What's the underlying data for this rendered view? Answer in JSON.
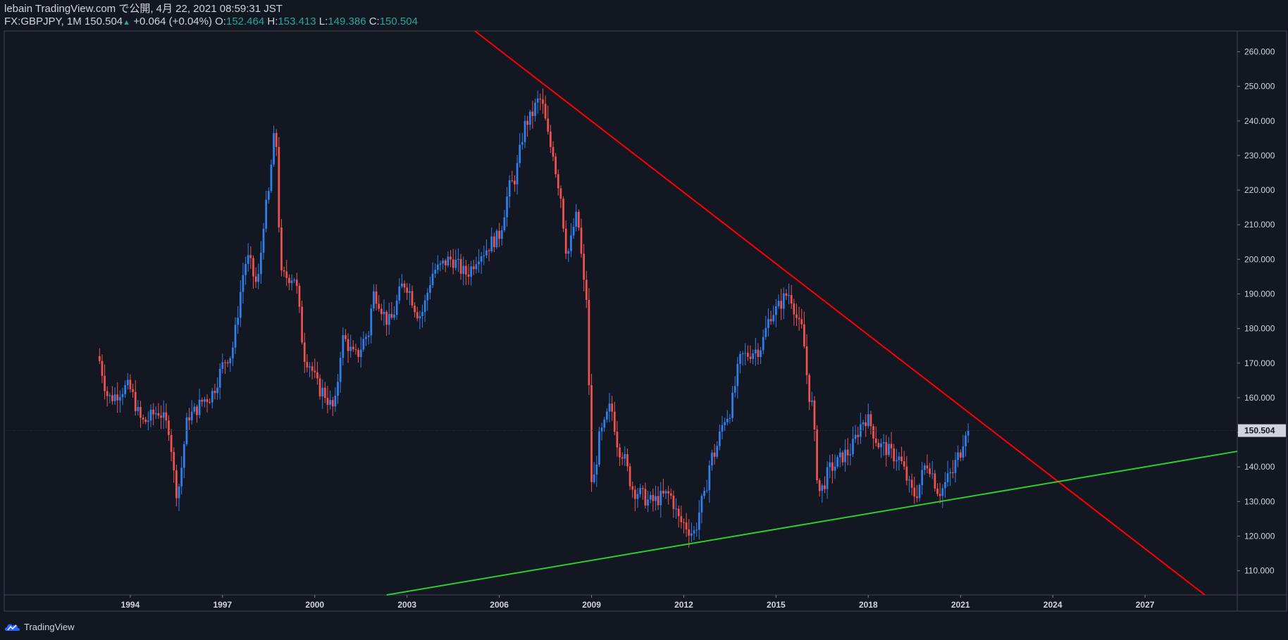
{
  "header": {
    "published": "lebain TradingView.com で公開, 4月 22, 2021 08:59:31 JST",
    "symbol": "FX:GBPJPY, 1M 150.504",
    "change_icon": "triangle-up-icon",
    "change": "+0.064 (+0.04%)",
    "o_label": "O:",
    "o_value": "152.464",
    "h_label": "H:",
    "h_value": "153.413",
    "l_label": "L:",
    "l_value": "149.386",
    "c_label": "C:",
    "c_value": "150.504"
  },
  "footer": {
    "logo_icon": "tradingview-cloud-icon",
    "logo_text": "TradingView"
  },
  "colors": {
    "background": "#131722",
    "up_candle": "#2f80ed",
    "down_candle": "#ef5350",
    "resistance_line": "#ff0000",
    "support_line": "#2ecc2e",
    "axis_text": "#d1d4dc",
    "ohlc_value": "#26a69a"
  },
  "chart_data": {
    "type": "candlestick",
    "symbol": "FX:GBPJPY",
    "interval": "1M",
    "last_price_label": "150.504",
    "x_ticks": [
      "1994",
      "1997",
      "2000",
      "2003",
      "2006",
      "2009",
      "2012",
      "2015",
      "2018",
      "2021",
      "2024",
      "2027"
    ],
    "y_ticks": [
      "110.000",
      "120.000",
      "130.000",
      "140.000",
      "150.000",
      "160.000",
      "170.000",
      "180.000",
      "190.000",
      "200.000",
      "210.000",
      "220.000",
      "230.000",
      "240.000",
      "250.000",
      "260.000"
    ],
    "ylim": [
      103,
      266
    ],
    "xlim": [
      1989.9,
      2030.0
    ],
    "anchors": [
      {
        "t": 1993.0,
        "p": 172
      },
      {
        "t": 1993.4,
        "p": 160
      },
      {
        "t": 1994.0,
        "p": 163
      },
      {
        "t": 1994.5,
        "p": 153
      },
      {
        "t": 1995.0,
        "p": 156
      },
      {
        "t": 1995.3,
        "p": 152
      },
      {
        "t": 1995.6,
        "p": 133
      },
      {
        "t": 1996.0,
        "p": 155
      },
      {
        "t": 1996.6,
        "p": 160
      },
      {
        "t": 1997.3,
        "p": 172
      },
      {
        "t": 1997.9,
        "p": 200
      },
      {
        "t": 1998.2,
        "p": 193
      },
      {
        "t": 1998.5,
        "p": 215
      },
      {
        "t": 1998.8,
        "p": 236
      },
      {
        "t": 1999.0,
        "p": 195
      },
      {
        "t": 1999.4,
        "p": 195
      },
      {
        "t": 1999.8,
        "p": 171
      },
      {
        "t": 2000.3,
        "p": 162
      },
      {
        "t": 2000.7,
        "p": 157
      },
      {
        "t": 2001.0,
        "p": 177
      },
      {
        "t": 2001.4,
        "p": 172
      },
      {
        "t": 2001.8,
        "p": 178
      },
      {
        "t": 2002.0,
        "p": 190
      },
      {
        "t": 2002.5,
        "p": 182
      },
      {
        "t": 2003.0,
        "p": 193
      },
      {
        "t": 2003.5,
        "p": 184
      },
      {
        "t": 2004.0,
        "p": 197
      },
      {
        "t": 2004.5,
        "p": 200
      },
      {
        "t": 2005.0,
        "p": 196
      },
      {
        "t": 2005.5,
        "p": 202
      },
      {
        "t": 2006.0,
        "p": 206
      },
      {
        "t": 2006.5,
        "p": 222
      },
      {
        "t": 2007.0,
        "p": 240
      },
      {
        "t": 2007.4,
        "p": 246
      },
      {
        "t": 2007.8,
        "p": 232
      },
      {
        "t": 2008.0,
        "p": 222
      },
      {
        "t": 2008.3,
        "p": 202
      },
      {
        "t": 2008.6,
        "p": 212
      },
      {
        "t": 2008.9,
        "p": 190
      },
      {
        "t": 2009.1,
        "p": 135
      },
      {
        "t": 2009.4,
        "p": 150
      },
      {
        "t": 2009.7,
        "p": 157
      },
      {
        "t": 2010.0,
        "p": 145
      },
      {
        "t": 2010.5,
        "p": 133
      },
      {
        "t": 2011.0,
        "p": 130
      },
      {
        "t": 2011.6,
        "p": 132
      },
      {
        "t": 2012.0,
        "p": 124
      },
      {
        "t": 2012.4,
        "p": 121
      },
      {
        "t": 2012.7,
        "p": 130
      },
      {
        "t": 2013.0,
        "p": 143
      },
      {
        "t": 2013.5,
        "p": 155
      },
      {
        "t": 2014.0,
        "p": 172
      },
      {
        "t": 2014.5,
        "p": 174
      },
      {
        "t": 2015.0,
        "p": 185
      },
      {
        "t": 2015.5,
        "p": 190
      },
      {
        "t": 2015.9,
        "p": 180
      },
      {
        "t": 2016.2,
        "p": 160
      },
      {
        "t": 2016.5,
        "p": 133
      },
      {
        "t": 2016.9,
        "p": 140
      },
      {
        "t": 2017.4,
        "p": 144
      },
      {
        "t": 2018.0,
        "p": 154
      },
      {
        "t": 2018.5,
        "p": 146
      },
      {
        "t": 2019.0,
        "p": 143
      },
      {
        "t": 2019.6,
        "p": 132
      },
      {
        "t": 2020.0,
        "p": 141
      },
      {
        "t": 2020.4,
        "p": 133
      },
      {
        "t": 2020.8,
        "p": 138
      },
      {
        "t": 2021.0,
        "p": 143
      },
      {
        "t": 2021.3,
        "p": 151.5
      }
    ],
    "resistance_line": {
      "p1": {
        "t": 2007.9,
        "p": 247.5
      },
      "p2": {
        "t": 2021.3,
        "p": 155.5
      }
    },
    "support_line": {
      "p1": {
        "t": 2012.0,
        "p": 117.5
      },
      "p2": {
        "t": 2021.0,
        "p": 131.0
      }
    }
  }
}
